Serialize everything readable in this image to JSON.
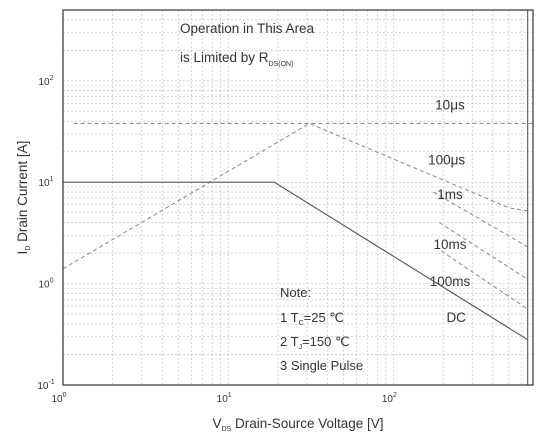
{
  "chart_data": {
    "type": "line",
    "x_axis": {
      "scale": "log",
      "range": [
        1,
        700
      ],
      "ticks": [
        {
          "value": 1,
          "base": "10",
          "exp": "0"
        },
        {
          "value": 10,
          "base": "10",
          "exp": "1"
        },
        {
          "value": 100,
          "base": "10",
          "exp": "2"
        }
      ],
      "label_prefix": "V",
      "label_sub": "DS",
      "label_rest": " Drain-Source Voltage [V]"
    },
    "y_axis": {
      "scale": "log",
      "range": [
        0.1,
        500
      ],
      "ticks": [
        {
          "value": 0.1,
          "base": "10",
          "exp": "-1"
        },
        {
          "value": 1,
          "base": "10",
          "exp": "0"
        },
        {
          "value": 10,
          "base": "10",
          "exp": "1"
        },
        {
          "value": 100,
          "base": "10",
          "exp": "2"
        }
      ],
      "label_prefix": "I",
      "label_sub": "D",
      "label_rest": " Drain Current [A]"
    },
    "grid": true,
    "series": [
      {
        "name": "10μs",
        "style": "dashed",
        "points": [
          [
            1.16,
            38
          ],
          [
            700,
            38
          ]
        ],
        "label_at": [
          220,
          52
        ]
      },
      {
        "name": "100μs",
        "style": "dashed",
        "points": [
          [
            1,
            1.4
          ],
          [
            31,
            38
          ],
          [
            500,
            5.6
          ],
          [
            650,
            5.2
          ]
        ],
        "label_at": [
          210,
          15
        ]
      },
      {
        "name": "1ms",
        "style": "dashed",
        "points": [
          [
            175,
            8
          ],
          [
            650,
            2.3
          ]
        ],
        "label_at": [
          220,
          6.8
        ]
      },
      {
        "name": "10ms",
        "style": "dashed",
        "points": [
          [
            190,
            4
          ],
          [
            650,
            1.1
          ]
        ],
        "label_at": [
          220,
          2.2
        ]
      },
      {
        "name": "100ms",
        "style": "dashed",
        "points": [
          [
            195,
            2.1
          ],
          [
            650,
            0.56
          ]
        ],
        "label_at": [
          220,
          0.95
        ]
      },
      {
        "name": "DC",
        "style": "solid",
        "points": [
          [
            1,
            10
          ],
          [
            19,
            10
          ],
          [
            650,
            0.28
          ]
        ],
        "label_at": [
          240,
          0.42
        ]
      }
    ],
    "limit_line": {
      "x": 650,
      "style": "solid"
    },
    "annotation": {
      "line1": "Operation in This Area",
      "line2_main": "is Limited by R",
      "line2_sub": "DS(ON)"
    },
    "notes": {
      "title": "Note:",
      "n1_prefix": "1 T",
      "n1_sub": "C",
      "n1_rest": "=25 ℃",
      "n2_prefix": "2 T",
      "n2_sub": "J",
      "n2_rest": "=150 ℃",
      "n3": "3 Single Pulse"
    },
    "colors": {
      "axis": "#333333",
      "grid": "#bdbdbd",
      "series": "#888888",
      "dc": "#555555"
    }
  }
}
